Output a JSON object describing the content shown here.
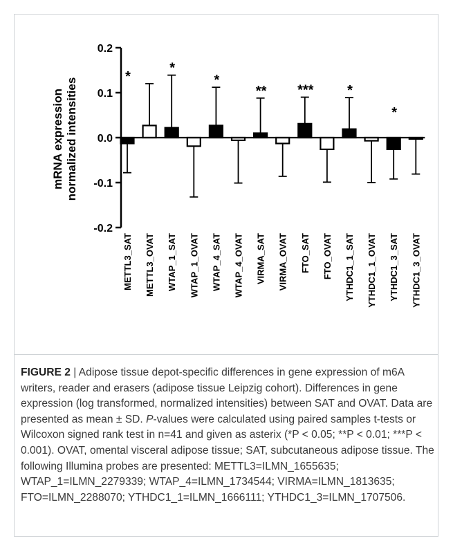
{
  "caption": {
    "label": "FIGURE 2",
    "separator": " | ",
    "text_1": "Adipose tissue depot-specific differences in gene expression of m6A writers, reader and erasers (adipose tissue Leipzig cohort). Differences in gene expression (log transformed, normalized intensities) between SAT and OVAT. Data are presented as mean ± SD. ",
    "p_italic": "P",
    "text_2": "-values were calculated using paired samples t-tests or Wilcoxon signed rank test in n=41 and given as asterix (*P < 0.05; **P < 0.01; ***P < 0.001). OVAT, omental visceral adipose tissue; SAT, subcutaneous adipose tissue. The following Illumina probes are presented: METTL3=ILMN_1655635; WTAP_1=ILMN_2279339; WTAP_4=ILMN_1734544; VIRMA=ILMN_1813635; FTO=ILMN_2288070; YTHDC1_1=ILMN_1666111; YTHDC1_3=ILMN_1707506."
  },
  "chart_data": {
    "type": "bar",
    "ylabel_line1": "mRNA expression",
    "ylabel_line2": "normalized intensities",
    "ylim": [
      -0.2,
      0.2
    ],
    "yticks": [
      -0.2,
      -0.1,
      0.0,
      0.1,
      0.2
    ],
    "ytick_labels": [
      "-0.2",
      "-0.1",
      "0.0",
      "0.1",
      "0.2"
    ],
    "error_bars": "SD",
    "categories": [
      "METTL3_SAT",
      "METTL3_OVAT",
      "WTAP_1_SAT",
      "WTAP_1_OVAT",
      "WTAP_4_SAT",
      "WTAP_4_OVAT",
      "VIRMA_SAT",
      "VIRMA_OVAT",
      "FTO_SAT",
      "FTO_OVAT",
      "YTHDC1_1_SAT",
      "YTHDC1_1_OVAT",
      "YTHDC1_3_SAT",
      "YTHDC1_3_OVAT"
    ],
    "values": [
      -0.013,
      0.027,
      0.022,
      -0.019,
      0.027,
      -0.006,
      0.01,
      -0.013,
      0.031,
      -0.026,
      0.019,
      -0.007,
      -0.026,
      -0.003
    ],
    "sd": [
      0.065,
      0.093,
      0.117,
      0.113,
      0.085,
      0.095,
      0.078,
      0.073,
      0.059,
      0.073,
      0.07,
      0.093,
      0.066,
      0.078
    ],
    "fill": [
      "black",
      "white",
      "black",
      "white",
      "black",
      "white",
      "black",
      "white",
      "black",
      "white",
      "black",
      "white",
      "black",
      "white"
    ],
    "significance": [
      {
        "pair": [
          "METTL3_SAT",
          "METTL3_OVAT"
        ],
        "label": "*"
      },
      {
        "pair": [
          "WTAP_1_SAT",
          "WTAP_1_OVAT"
        ],
        "label": "*"
      },
      {
        "pair": [
          "WTAP_4_SAT",
          "WTAP_4_OVAT"
        ],
        "label": "*"
      },
      {
        "pair": [
          "VIRMA_SAT",
          "VIRMA_OVAT"
        ],
        "label": "**"
      },
      {
        "pair": [
          "FTO_SAT",
          "FTO_OVAT"
        ],
        "label": "***"
      },
      {
        "pair": [
          "YTHDC1_1_SAT",
          "YTHDC1_1_OVAT"
        ],
        "label": "*"
      },
      {
        "pair": [
          "YTHDC1_3_SAT",
          "YTHDC1_3_OVAT"
        ],
        "label": "*"
      }
    ],
    "colors": {
      "bar_dark": "#000000",
      "bar_light": "#ffffff",
      "axis": "#000000"
    }
  }
}
